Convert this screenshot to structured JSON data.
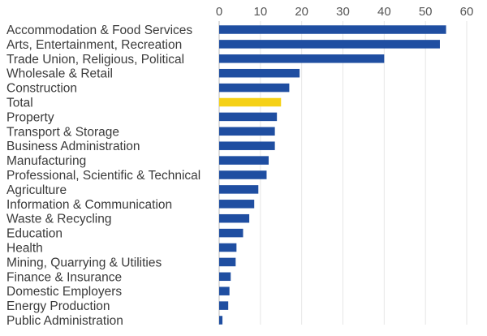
{
  "chart_data": {
    "type": "bar",
    "orientation": "horizontal",
    "title": "",
    "xlabel": "",
    "ylabel": "",
    "xlim": [
      0,
      60
    ],
    "ticks": [
      0,
      10,
      20,
      30,
      40,
      50,
      60
    ],
    "grid": true,
    "colors": {
      "default": "#1f4ea1",
      "highlight": "#f5d116"
    },
    "highlight_category": "Total",
    "categories": [
      "Accommodation & Food Services",
      "Arts, Entertainment, Recreation",
      "Trade Union, Religious, Political",
      "Wholesale & Retail",
      "Construction",
      "Total",
      "Property",
      "Transport & Storage",
      "Business Administration",
      "Manufacturing",
      "Professional, Scientific & Technical",
      "Agriculture",
      "Information & Communication",
      "Waste & Recycling",
      "Education",
      "Health",
      "Mining, Quarrying & Utilities",
      "Finance & Insurance",
      "Domestic Employers",
      "Energy Production",
      "Public Administration"
    ],
    "values": [
      55,
      53.5,
      40,
      19.5,
      17,
      15,
      14,
      13.5,
      13.5,
      12,
      11.5,
      9.5,
      8.5,
      7.3,
      5.8,
      4.2,
      4,
      2.8,
      2.5,
      2.2,
      0.8
    ]
  }
}
